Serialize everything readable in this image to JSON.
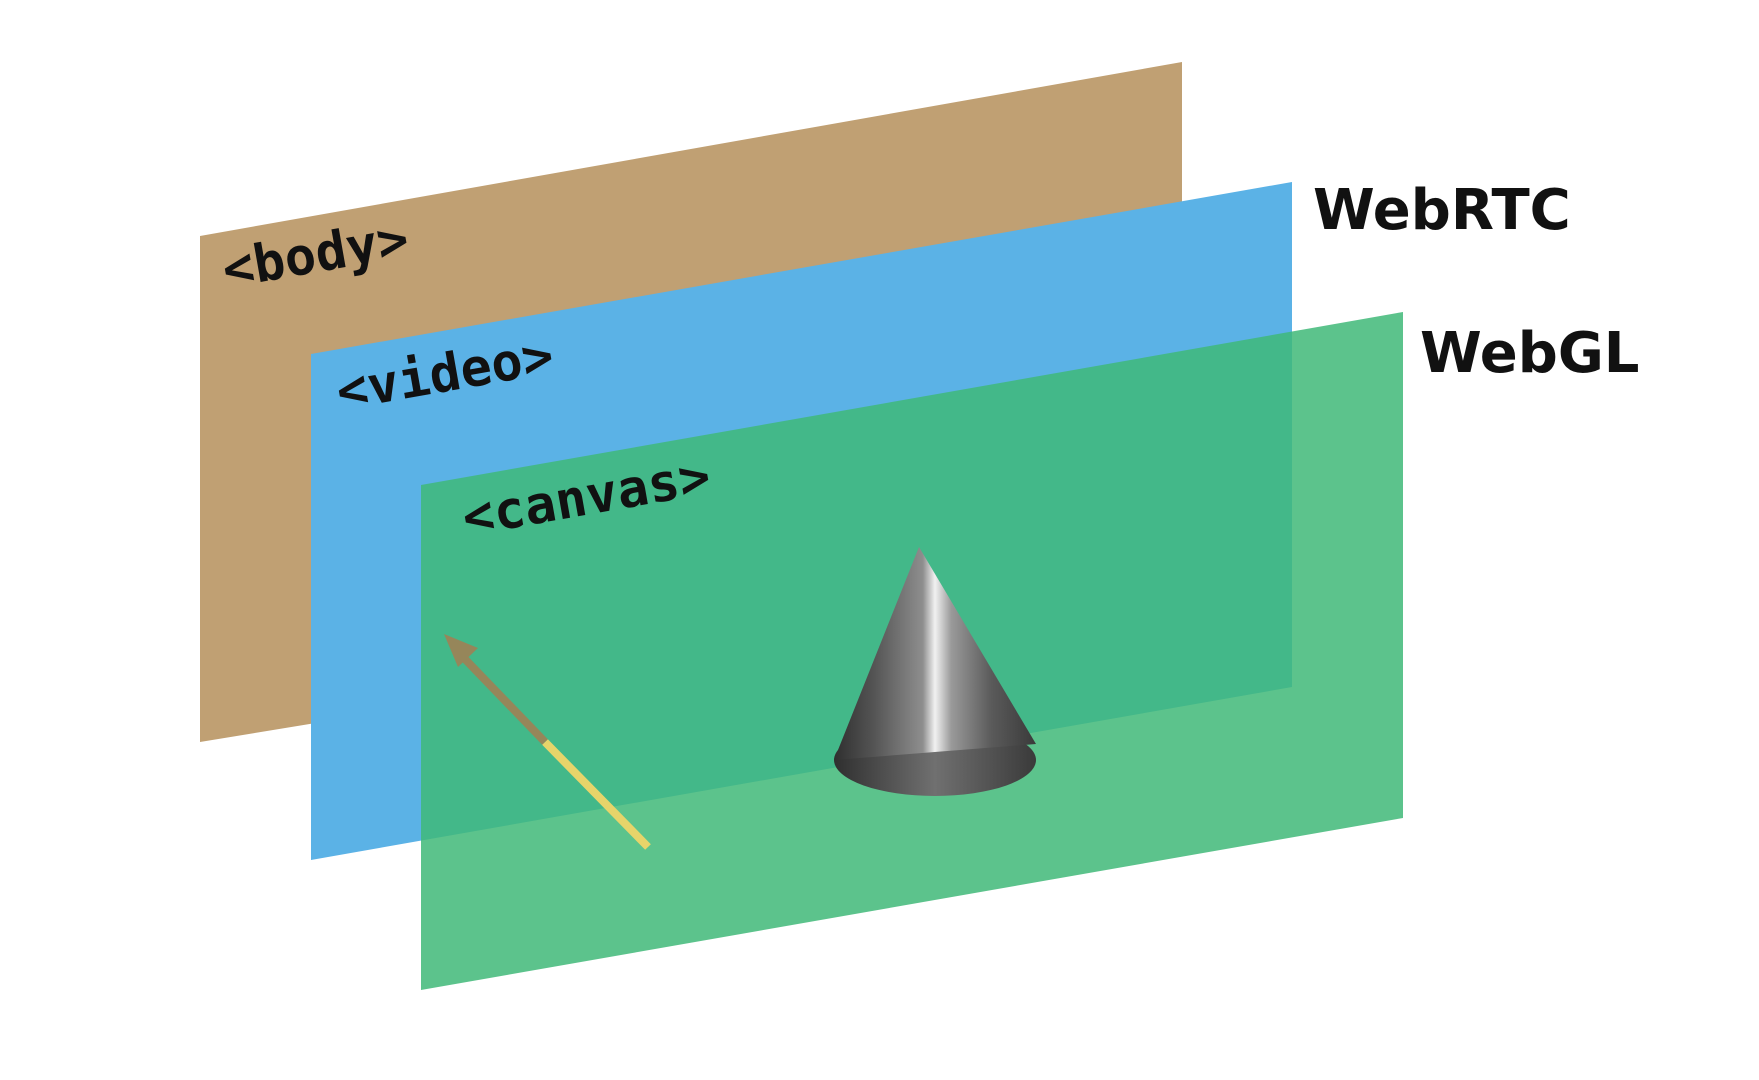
{
  "diagram": {
    "layers": [
      {
        "id": "body",
        "label": "<body>",
        "color": "#c0a073"
      },
      {
        "id": "video",
        "label": "<video>",
        "color": "#5bb2e6",
        "side_label": "WebRTC"
      },
      {
        "id": "canvas",
        "label": "<canvas>",
        "color": "#3fb978",
        "side_label": "WebGL"
      }
    ],
    "objects": {
      "cone": {
        "color": "#6f6f6f"
      },
      "arrow": {
        "shaft_color": "#e7d46a",
        "head_color": "#96865a"
      }
    }
  }
}
